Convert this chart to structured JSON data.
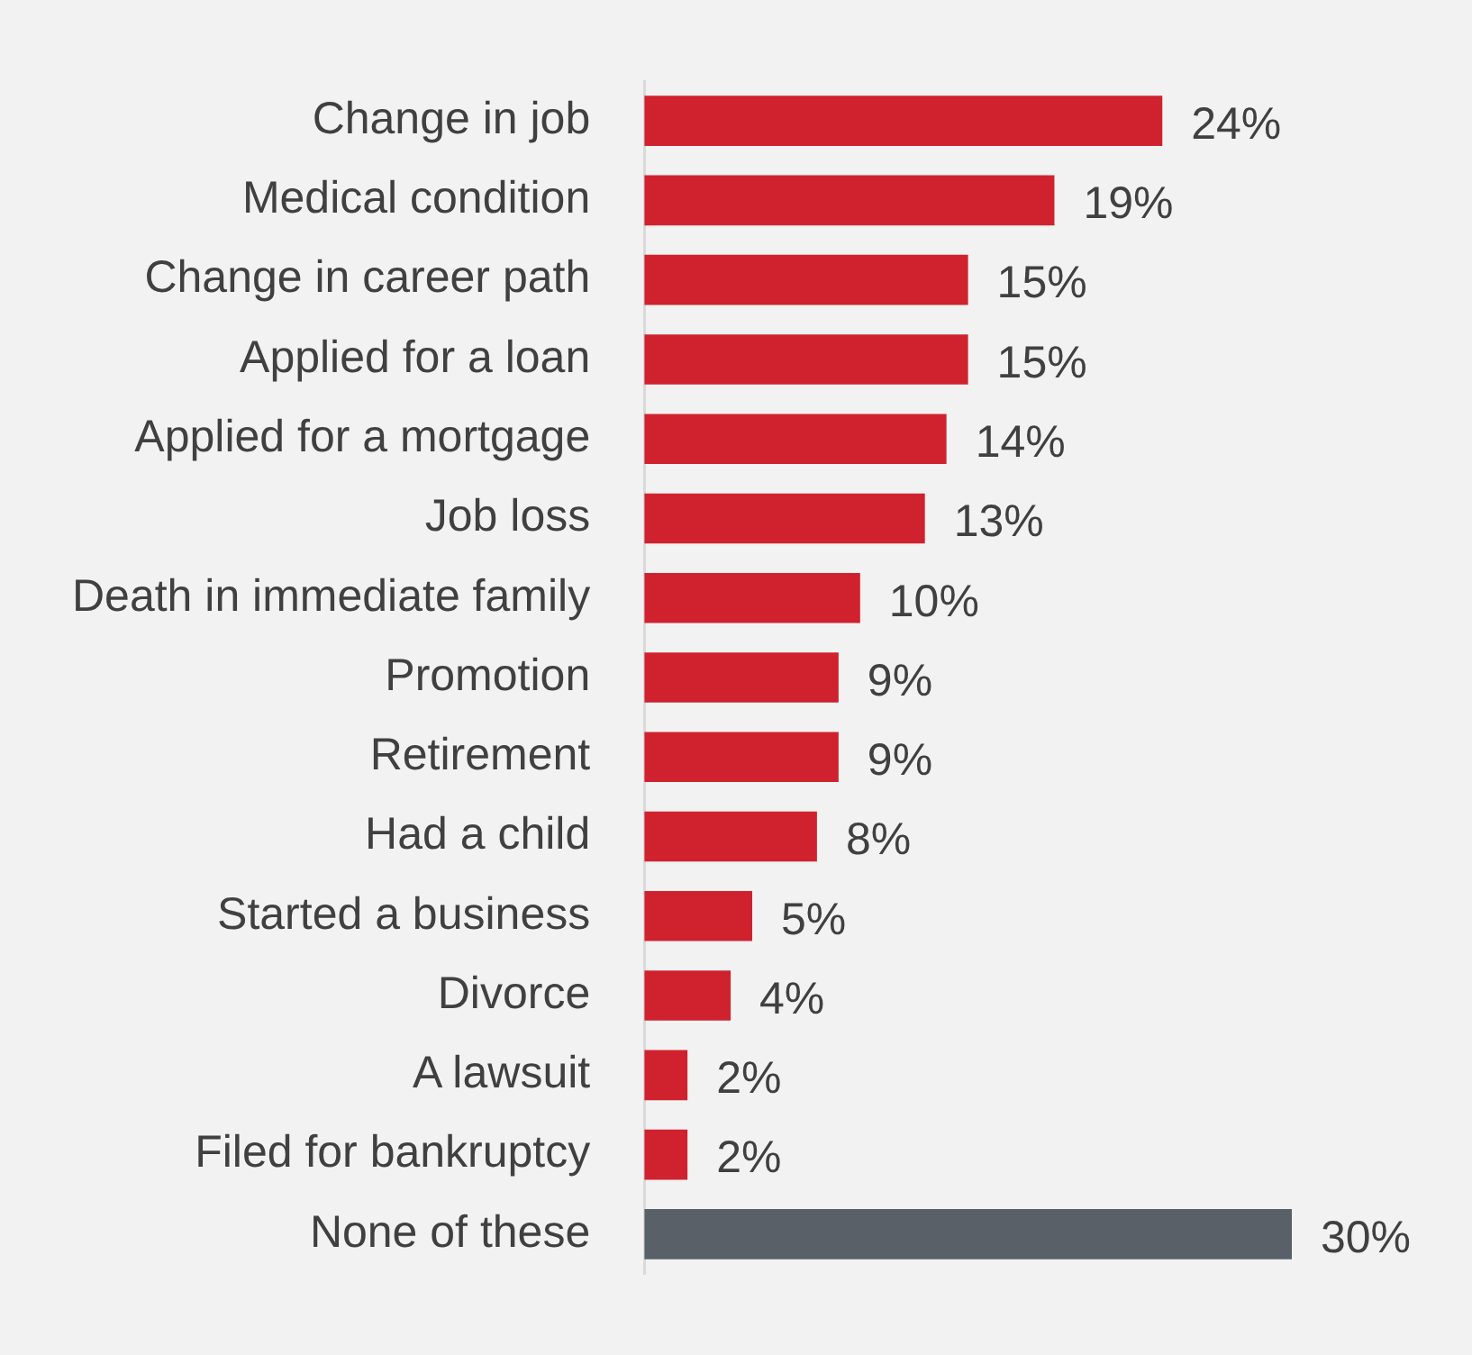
{
  "chart_data": {
    "type": "bar",
    "orientation": "horizontal",
    "categories": [
      "Change in job",
      "Medical condition",
      "Change in career path",
      "Applied for a loan",
      "Applied for a mortgage",
      "Job loss",
      "Death in immediate family",
      "Promotion",
      "Retirement",
      "Had a child",
      "Started a business",
      "Divorce",
      "A lawsuit",
      "Filed for bankruptcy",
      "None of these"
    ],
    "values": [
      24,
      19,
      15,
      15,
      14,
      13,
      10,
      9,
      9,
      8,
      5,
      4,
      2,
      2,
      30
    ],
    "colors": [
      "#d0222e",
      "#d0222e",
      "#d0222e",
      "#d0222e",
      "#d0222e",
      "#d0222e",
      "#d0222e",
      "#d0222e",
      "#d0222e",
      "#d0222e",
      "#d0222e",
      "#d0222e",
      "#d0222e",
      "#d0222e",
      "#596068"
    ],
    "value_labels": [
      "24%",
      "19%",
      "15%",
      "15%",
      "14%",
      "13%",
      "10%",
      "9%",
      "9%",
      "8%",
      "5%",
      "4%",
      "2%",
      "2%",
      "30%"
    ],
    "tick_labels": "y",
    "grid": false,
    "legend": false
  }
}
